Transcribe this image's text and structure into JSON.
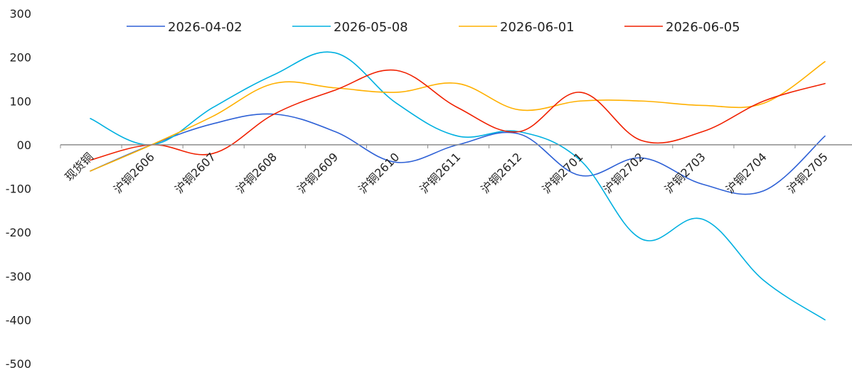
{
  "chart_data": {
    "type": "line",
    "title": "",
    "xlabel": "",
    "ylabel": "",
    "categories": [
      "现货铜",
      "沪铜2606",
      "沪铜2607",
      "沪铜2608",
      "沪铜2609",
      "沪铜2610",
      "沪铜2611",
      "沪铜2612",
      "沪铜2701",
      "沪铜2702",
      "沪铜2703",
      "沪铜2704",
      "沪铜2705"
    ],
    "y_ticks": [
      "300",
      "200",
      "100",
      "00",
      "-100",
      "-200",
      "-300",
      "-400",
      "-500"
    ],
    "ylim": [
      -500,
      300
    ],
    "legend": "top",
    "grid": false,
    "series": [
      {
        "name": "2026-04-02",
        "color": "#2e61d6",
        "values": [
          -60,
          0,
          48,
          70,
          30,
          -40,
          0,
          25,
          -70,
          -30,
          -90,
          -105,
          20
        ]
      },
      {
        "name": "2026-05-08",
        "color": "#00b0e0",
        "values": [
          60,
          0,
          85,
          160,
          210,
          95,
          20,
          30,
          -35,
          -215,
          -170,
          -310,
          -400
        ]
      },
      {
        "name": "2026-06-01",
        "color": "#ffb000",
        "values": [
          -60,
          0,
          65,
          140,
          130,
          120,
          140,
          80,
          100,
          100,
          90,
          95,
          190
        ]
      },
      {
        "name": "2026-06-05",
        "color": "#f02000",
        "values": [
          -35,
          0,
          -20,
          70,
          125,
          170,
          85,
          30,
          120,
          10,
          30,
          100,
          140
        ]
      }
    ]
  }
}
